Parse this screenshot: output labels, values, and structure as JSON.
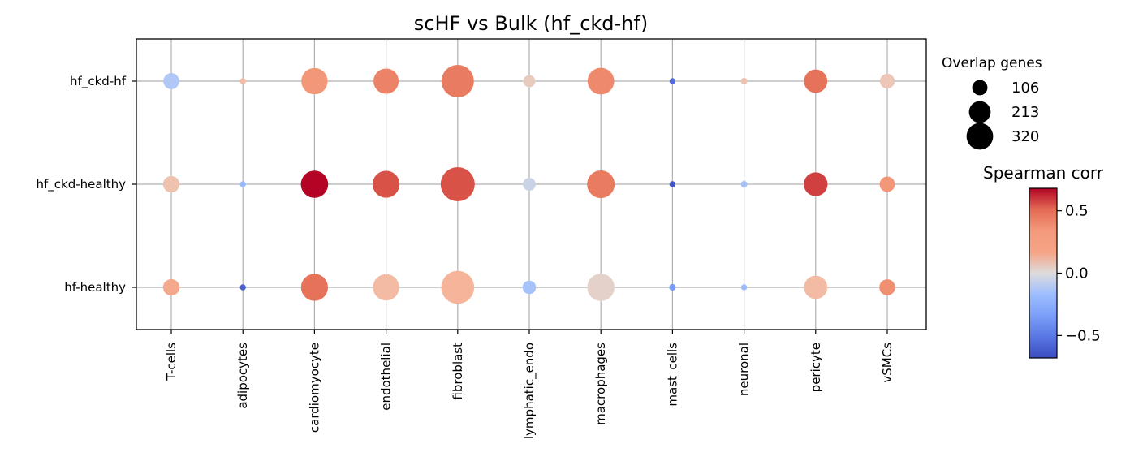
{
  "chart_data": {
    "type": "scatter",
    "title": "scHF vs Bulk (hf_ckd-hf)",
    "x_categories": [
      "T-cells",
      "adipocytes",
      "cardiomyocyte",
      "endothelial",
      "fibroblast",
      "lymphatic_endo",
      "macrophages",
      "mast_cells",
      "neuronal",
      "pericyte",
      "vSMCs"
    ],
    "y_categories": [
      "hf_ckd-hf",
      "hf_ckd-healthy",
      "hf-healthy"
    ],
    "points": [
      {
        "x": "T-cells",
        "y": "hf_ckd-hf",
        "corr": -0.12,
        "genes": 70
      },
      {
        "x": "adipocytes",
        "y": "hf_ckd-hf",
        "corr": 0.15,
        "genes": 10
      },
      {
        "x": "cardiomyocyte",
        "y": "hf_ckd-hf",
        "corr": 0.35,
        "genes": 190
      },
      {
        "x": "endothelial",
        "y": "hf_ckd-hf",
        "corr": 0.42,
        "genes": 175
      },
      {
        "x": "fibroblast",
        "y": "hf_ckd-hf",
        "corr": 0.45,
        "genes": 290
      },
      {
        "x": "lymphatic_endo",
        "y": "hf_ckd-hf",
        "corr": 0.08,
        "genes": 40
      },
      {
        "x": "macrophages",
        "y": "hf_ckd-hf",
        "corr": 0.4,
        "genes": 195
      },
      {
        "x": "mast_cells",
        "y": "hf_ckd-hf",
        "corr": -0.55,
        "genes": 10
      },
      {
        "x": "neuronal",
        "y": "hf_ckd-hf",
        "corr": 0.12,
        "genes": 12
      },
      {
        "x": "pericyte",
        "y": "hf_ckd-hf",
        "corr": 0.48,
        "genes": 150
      },
      {
        "x": "vSMCs",
        "y": "hf_ckd-hf",
        "corr": 0.1,
        "genes": 60
      },
      {
        "x": "T-cells",
        "y": "hf_ckd-healthy",
        "corr": 0.12,
        "genes": 75
      },
      {
        "x": "adipocytes",
        "y": "hf_ckd-healthy",
        "corr": -0.2,
        "genes": 10
      },
      {
        "x": "cardiomyocyte",
        "y": "hf_ckd-healthy",
        "corr": 0.68,
        "genes": 205
      },
      {
        "x": "endothelial",
        "y": "hf_ckd-healthy",
        "corr": 0.55,
        "genes": 200
      },
      {
        "x": "fibroblast",
        "y": "hf_ckd-healthy",
        "corr": 0.55,
        "genes": 320
      },
      {
        "x": "lymphatic_endo",
        "y": "hf_ckd-healthy",
        "corr": -0.05,
        "genes": 45
      },
      {
        "x": "macrophages",
        "y": "hf_ckd-healthy",
        "corr": 0.45,
        "genes": 210
      },
      {
        "x": "mast_cells",
        "y": "hf_ckd-healthy",
        "corr": -0.65,
        "genes": 10
      },
      {
        "x": "neuronal",
        "y": "hf_ckd-healthy",
        "corr": -0.15,
        "genes": 12
      },
      {
        "x": "pericyte",
        "y": "hf_ckd-healthy",
        "corr": 0.58,
        "genes": 155
      },
      {
        "x": "vSMCs",
        "y": "hf_ckd-healthy",
        "corr": 0.35,
        "genes": 65
      },
      {
        "x": "T-cells",
        "y": "hf-healthy",
        "corr": 0.25,
        "genes": 75
      },
      {
        "x": "adipocytes",
        "y": "hf-healthy",
        "corr": -0.6,
        "genes": 10
      },
      {
        "x": "cardiomyocyte",
        "y": "hf-healthy",
        "corr": 0.48,
        "genes": 200
      },
      {
        "x": "endothelial",
        "y": "hf-healthy",
        "corr": 0.15,
        "genes": 190
      },
      {
        "x": "fibroblast",
        "y": "hf-healthy",
        "corr": 0.18,
        "genes": 300
      },
      {
        "x": "lymphatic_endo",
        "y": "hf-healthy",
        "corr": -0.15,
        "genes": 50
      },
      {
        "x": "macrophages",
        "y": "hf-healthy",
        "corr": 0.05,
        "genes": 205
      },
      {
        "x": "mast_cells",
        "y": "hf-healthy",
        "corr": -0.35,
        "genes": 12
      },
      {
        "x": "neuronal",
        "y": "hf-healthy",
        "corr": -0.18,
        "genes": 10
      },
      {
        "x": "pericyte",
        "y": "hf-healthy",
        "corr": 0.15,
        "genes": 150
      },
      {
        "x": "vSMCs",
        "y": "hf-healthy",
        "corr": 0.38,
        "genes": 70
      }
    ],
    "size_legend": {
      "title": "Overlap genes",
      "values": [
        106,
        213,
        320
      ],
      "labels": [
        "106",
        "213",
        "320"
      ]
    },
    "colorbar": {
      "title": "Spearman corr",
      "range": [
        -0.68,
        0.68
      ],
      "ticks": [
        0.5,
        0.0,
        -0.5
      ],
      "tick_labels": [
        "0.5",
        "0.0",
        "−0.5"
      ],
      "colormap": "coolwarm"
    },
    "grid": true,
    "legend_position": "right"
  }
}
